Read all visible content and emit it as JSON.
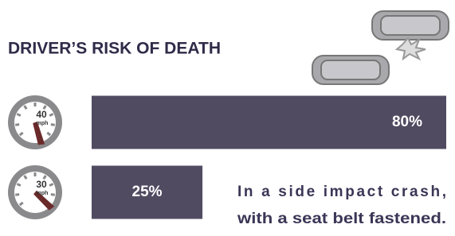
{
  "chart_data": {
    "type": "bar",
    "orientation": "horizontal",
    "title": "DRIVER’S RISK OF DEATH",
    "categories": [
      40,
      30
    ],
    "category_unit": "mph",
    "values": [
      80,
      25
    ],
    "value_labels": [
      "80%",
      "25%"
    ],
    "color": "#504b61",
    "annotation": [
      "In a side impact crash,",
      "with a seat belt fastened."
    ]
  }
}
